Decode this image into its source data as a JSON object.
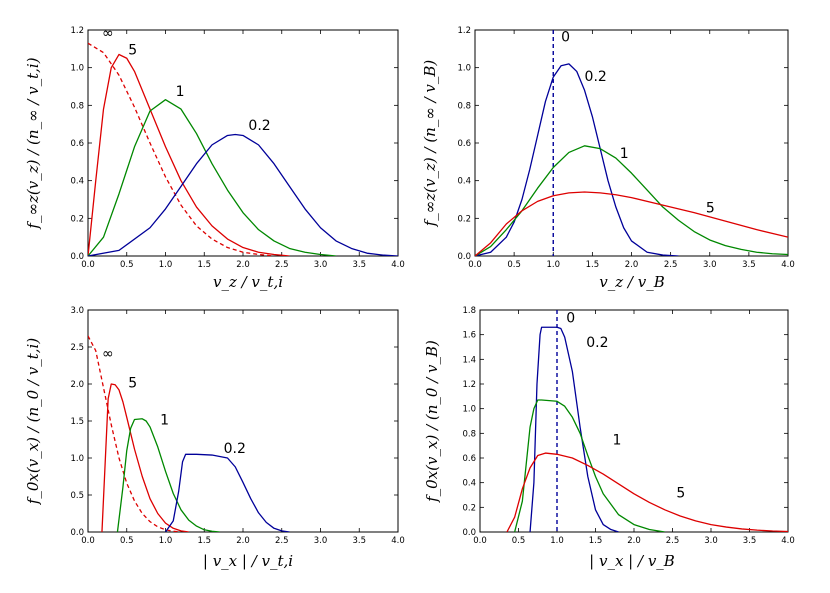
{
  "chart_data": [
    {
      "type": "line",
      "panel": "top-left",
      "xlabel": "v_z / v_t,i",
      "ylabel": "f_∞z(v_z) / (n_∞ / v_t,i)",
      "xlim": [
        0,
        4
      ],
      "ylim": [
        0,
        1.2
      ],
      "xticks": [
        "0.0",
        "0.5",
        "1.0",
        "1.5",
        "2.0",
        "2.5",
        "3.0",
        "3.5",
        "4.0"
      ],
      "yticks": [
        "0.0",
        "0.2",
        "0.4",
        "0.6",
        "0.8",
        "1.0",
        "1.2"
      ],
      "series": [
        {
          "name": "∞",
          "color": "#dd0000",
          "dashed": true,
          "x": [
            0,
            0.2,
            0.4,
            0.6,
            0.8,
            1.0,
            1.2,
            1.4,
            1.6,
            1.8,
            2.0,
            2.2,
            2.4
          ],
          "y": [
            1.13,
            1.08,
            0.96,
            0.79,
            0.6,
            0.42,
            0.27,
            0.16,
            0.09,
            0.045,
            0.02,
            0.008,
            0.0
          ]
        },
        {
          "name": "5",
          "color": "#dd0000",
          "dashed": false,
          "x": [
            0,
            0.1,
            0.2,
            0.3,
            0.4,
            0.5,
            0.6,
            0.8,
            1.0,
            1.2,
            1.4,
            1.6,
            1.8,
            2.0,
            2.2,
            2.4,
            2.6
          ],
          "y": [
            0,
            0.4,
            0.78,
            1.0,
            1.07,
            1.05,
            0.98,
            0.78,
            0.58,
            0.4,
            0.26,
            0.16,
            0.09,
            0.045,
            0.02,
            0.008,
            0.0
          ]
        },
        {
          "name": "1",
          "color": "#008800",
          "dashed": false,
          "x": [
            0,
            0.2,
            0.4,
            0.6,
            0.8,
            1.0,
            1.2,
            1.4,
            1.6,
            1.8,
            2.0,
            2.2,
            2.4,
            2.6,
            2.8,
            3.0,
            3.2
          ],
          "y": [
            0,
            0.1,
            0.33,
            0.58,
            0.77,
            0.83,
            0.78,
            0.65,
            0.49,
            0.35,
            0.23,
            0.14,
            0.08,
            0.04,
            0.02,
            0.008,
            0.0
          ]
        },
        {
          "name": "0.2",
          "color": "#000099",
          "dashed": false,
          "x": [
            0,
            0.4,
            0.8,
            1.0,
            1.2,
            1.4,
            1.6,
            1.8,
            1.9,
            2.0,
            2.2,
            2.4,
            2.6,
            2.8,
            3.0,
            3.2,
            3.4,
            3.6,
            3.8,
            4.0
          ],
          "y": [
            0,
            0.03,
            0.15,
            0.25,
            0.37,
            0.49,
            0.59,
            0.64,
            0.645,
            0.64,
            0.59,
            0.49,
            0.37,
            0.25,
            0.15,
            0.08,
            0.04,
            0.015,
            0.005,
            0.0
          ]
        }
      ],
      "labels": [
        {
          "text": "∞",
          "x": 0.18,
          "y": 1.16
        },
        {
          "text": "5",
          "x": 0.52,
          "y": 1.07
        },
        {
          "text": "1",
          "x": 1.13,
          "y": 0.85
        },
        {
          "text": "0.2",
          "x": 2.07,
          "y": 0.67
        }
      ]
    },
    {
      "type": "line",
      "panel": "top-right",
      "xlabel": "v_z / v_B",
      "ylabel": "f_∞z(v_z) / (n_∞ / v_B)",
      "xlim": [
        0,
        4
      ],
      "ylim": [
        0,
        1.2
      ],
      "xticks": [
        "0.0",
        "0.5",
        "1.0",
        "1.5",
        "2.0",
        "2.5",
        "3.0",
        "3.5",
        "4.0"
      ],
      "yticks": [
        "0.0",
        "0.2",
        "0.4",
        "0.6",
        "0.8",
        "1.0",
        "1.2"
      ],
      "vline": {
        "name": "0",
        "x": 1.0,
        "color": "#000099",
        "dashed": true
      },
      "series": [
        {
          "name": "0.2",
          "color": "#000099",
          "dashed": false,
          "x": [
            0,
            0.2,
            0.4,
            0.5,
            0.6,
            0.7,
            0.8,
            0.9,
            1.0,
            1.1,
            1.2,
            1.3,
            1.4,
            1.5,
            1.6,
            1.7,
            1.8,
            1.9,
            2.0,
            2.2,
            2.4,
            2.6
          ],
          "y": [
            0,
            0.02,
            0.1,
            0.18,
            0.3,
            0.46,
            0.64,
            0.82,
            0.95,
            1.01,
            1.02,
            0.98,
            0.88,
            0.74,
            0.57,
            0.4,
            0.26,
            0.15,
            0.08,
            0.02,
            0.005,
            0.0
          ]
        },
        {
          "name": "1",
          "color": "#008800",
          "dashed": false,
          "x": [
            0,
            0.2,
            0.4,
            0.6,
            0.8,
            1.0,
            1.2,
            1.4,
            1.6,
            1.8,
            2.0,
            2.2,
            2.4,
            2.6,
            2.8,
            3.0,
            3.2,
            3.4,
            3.6,
            3.8,
            4.0
          ],
          "y": [
            0,
            0.05,
            0.14,
            0.24,
            0.36,
            0.47,
            0.55,
            0.585,
            0.57,
            0.52,
            0.44,
            0.35,
            0.26,
            0.19,
            0.13,
            0.085,
            0.055,
            0.035,
            0.02,
            0.012,
            0.008
          ]
        },
        {
          "name": "5",
          "color": "#dd0000",
          "dashed": false,
          "x": [
            0,
            0.2,
            0.4,
            0.6,
            0.8,
            1.0,
            1.2,
            1.4,
            1.6,
            1.8,
            2.0,
            2.4,
            2.8,
            3.2,
            3.6,
            4.0
          ],
          "y": [
            0,
            0.07,
            0.17,
            0.24,
            0.29,
            0.32,
            0.335,
            0.34,
            0.335,
            0.325,
            0.31,
            0.27,
            0.23,
            0.185,
            0.14,
            0.1
          ]
        }
      ],
      "labels": [
        {
          "text": "0",
          "x": 1.1,
          "y": 1.14
        },
        {
          "text": "0.2",
          "x": 1.4,
          "y": 0.93
        },
        {
          "text": "1",
          "x": 1.85,
          "y": 0.52
        },
        {
          "text": "5",
          "x": 2.95,
          "y": 0.23
        }
      ]
    },
    {
      "type": "line",
      "panel": "bottom-left",
      "xlabel": "| v_x | / v_t,i",
      "ylabel": "f_0x(v_x) / (n_0 / v_t,i)",
      "xlim": [
        0,
        4
      ],
      "ylim": [
        0,
        3.0
      ],
      "xticks": [
        "0.0",
        "0.5",
        "1.0",
        "1.5",
        "2.0",
        "2.5",
        "3.0",
        "3.5",
        "4.0"
      ],
      "yticks": [
        "0.0",
        "0.5",
        "1.0",
        "1.5",
        "2.0",
        "2.5",
        "3.0"
      ],
      "series": [
        {
          "name": "∞",
          "color": "#dd0000",
          "dashed": true,
          "x": [
            0,
            0.1,
            0.2,
            0.3,
            0.4,
            0.5,
            0.6,
            0.7,
            0.8,
            0.9,
            1.0,
            1.1,
            1.2
          ],
          "y": [
            2.65,
            2.45,
            1.95,
            1.45,
            1.0,
            0.66,
            0.42,
            0.25,
            0.14,
            0.07,
            0.03,
            0.01,
            0.0
          ]
        },
        {
          "name": "5",
          "color": "#dd0000",
          "dashed": false,
          "x": [
            0.18,
            0.22,
            0.26,
            0.3,
            0.35,
            0.4,
            0.45,
            0.5,
            0.6,
            0.7,
            0.8,
            0.9,
            1.0,
            1.1,
            1.2,
            1.3
          ],
          "y": [
            0,
            0.9,
            1.8,
            2.0,
            1.99,
            1.92,
            1.76,
            1.55,
            1.12,
            0.75,
            0.45,
            0.25,
            0.12,
            0.05,
            0.015,
            0.0
          ]
        },
        {
          "name": "1",
          "color": "#008800",
          "dashed": false,
          "x": [
            0.38,
            0.45,
            0.5,
            0.55,
            0.6,
            0.7,
            0.75,
            0.8,
            0.9,
            1.0,
            1.1,
            1.2,
            1.3,
            1.4,
            1.5,
            1.6,
            1.7
          ],
          "y": [
            0,
            0.6,
            1.1,
            1.4,
            1.52,
            1.53,
            1.5,
            1.42,
            1.15,
            0.82,
            0.52,
            0.3,
            0.16,
            0.08,
            0.03,
            0.01,
            0.0
          ]
        },
        {
          "name": "0.2",
          "color": "#000099",
          "dashed": false,
          "x": [
            1.0,
            1.1,
            1.17,
            1.22,
            1.26,
            1.4,
            1.6,
            1.8,
            1.9,
            2.0,
            2.1,
            2.2,
            2.3,
            2.4,
            2.5,
            2.6
          ],
          "y": [
            0,
            0.15,
            0.55,
            0.95,
            1.05,
            1.05,
            1.04,
            1.0,
            0.88,
            0.67,
            0.45,
            0.26,
            0.13,
            0.05,
            0.015,
            0.0
          ]
        }
      ],
      "labels": [
        {
          "text": "∞",
          "x": 0.18,
          "y": 2.35
        },
        {
          "text": "5",
          "x": 0.52,
          "y": 1.95
        },
        {
          "text": "1",
          "x": 0.93,
          "y": 1.45
        },
        {
          "text": "0.2",
          "x": 1.75,
          "y": 1.07
        }
      ]
    },
    {
      "type": "line",
      "panel": "bottom-right",
      "xlabel": "| v_x | / v_B",
      "ylabel": "f_0x(v_x) / (n_0 / v_B)",
      "xlim": [
        0,
        4
      ],
      "ylim": [
        0,
        1.8
      ],
      "xticks": [
        "0.0",
        "0.5",
        "1.0",
        "1.5",
        "2.0",
        "2.5",
        "3.0",
        "3.5",
        "4.0"
      ],
      "yticks": [
        "0.0",
        "0.2",
        "0.4",
        "0.6",
        "0.8",
        "1.0",
        "1.2",
        "1.4",
        "1.6",
        "1.8"
      ],
      "vline": {
        "name": "0",
        "x": 1.0,
        "color": "#000099",
        "dashed": true
      },
      "series": [
        {
          "name": "0.2",
          "color": "#000099",
          "dashed": false,
          "x": [
            0.65,
            0.7,
            0.74,
            0.78,
            0.8,
            0.9,
            1.0,
            1.05,
            1.1,
            1.2,
            1.3,
            1.4,
            1.5,
            1.6,
            1.7,
            1.8
          ],
          "y": [
            0,
            0.4,
            1.2,
            1.6,
            1.66,
            1.66,
            1.66,
            1.65,
            1.58,
            1.3,
            0.85,
            0.45,
            0.18,
            0.06,
            0.02,
            0.0
          ]
        },
        {
          "name": "1",
          "color": "#008800",
          "dashed": false,
          "x": [
            0.45,
            0.55,
            0.6,
            0.65,
            0.7,
            0.75,
            0.8,
            1.0,
            1.1,
            1.2,
            1.3,
            1.4,
            1.5,
            1.6,
            1.8,
            2.0,
            2.2,
            2.4
          ],
          "y": [
            0,
            0.25,
            0.55,
            0.85,
            1.0,
            1.07,
            1.07,
            1.06,
            1.02,
            0.93,
            0.8,
            0.62,
            0.45,
            0.31,
            0.14,
            0.06,
            0.02,
            0.0
          ]
        },
        {
          "name": "5",
          "color": "#dd0000",
          "dashed": false,
          "x": [
            0.35,
            0.45,
            0.55,
            0.65,
            0.75,
            0.85,
            1.0,
            1.2,
            1.4,
            1.6,
            1.8,
            2.0,
            2.2,
            2.4,
            2.6,
            2.8,
            3.0,
            3.2,
            3.4,
            3.6,
            3.8,
            4.0
          ],
          "y": [
            0,
            0.12,
            0.35,
            0.52,
            0.62,
            0.64,
            0.63,
            0.6,
            0.54,
            0.47,
            0.39,
            0.31,
            0.24,
            0.18,
            0.13,
            0.09,
            0.06,
            0.04,
            0.025,
            0.015,
            0.008,
            0.004
          ]
        }
      ],
      "labels": [
        {
          "text": "0",
          "x": 1.12,
          "y": 1.7
        },
        {
          "text": "0.2",
          "x": 1.38,
          "y": 1.5
        },
        {
          "text": "1",
          "x": 1.72,
          "y": 0.71
        },
        {
          "text": "5",
          "x": 2.55,
          "y": 0.28
        }
      ]
    }
  ]
}
